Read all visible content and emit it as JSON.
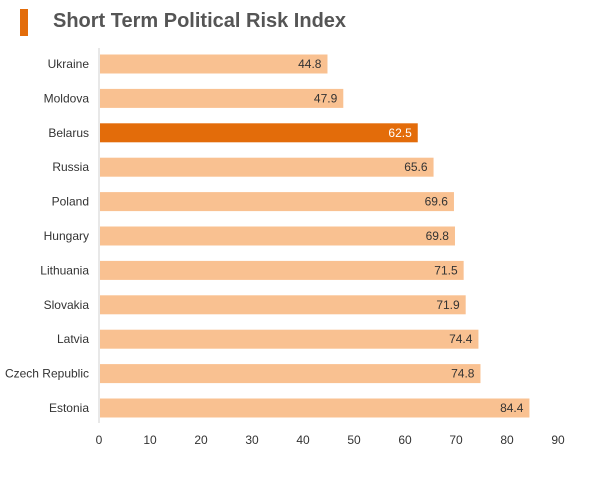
{
  "colors": {
    "bar": "#f9c191",
    "highlight": "#e36c0a",
    "title_marker": "#e36c0a",
    "label_on_bar": "#333333",
    "label_on_highlight": "#ffffff",
    "axis": "#d0d0d0"
  },
  "chart_data": {
    "type": "bar",
    "orientation": "horizontal",
    "title": "Short Term Political Risk Index",
    "categories": [
      "Ukraine",
      "Moldova",
      "Belarus",
      "Russia",
      "Poland",
      "Hungary",
      "Lithuania",
      "Slovakia",
      "Latvia",
      "Czech Republic",
      "Estonia"
    ],
    "values": [
      44.8,
      47.9,
      62.5,
      65.6,
      69.6,
      69.8,
      71.5,
      71.9,
      74.4,
      74.8,
      84.4
    ],
    "highlight": "Belarus",
    "xlim": [
      0,
      90
    ],
    "xticks": [
      0,
      10,
      20,
      30,
      40,
      50,
      60,
      70,
      80,
      90
    ],
    "data_labels": true,
    "grid": false,
    "legend": "none"
  }
}
